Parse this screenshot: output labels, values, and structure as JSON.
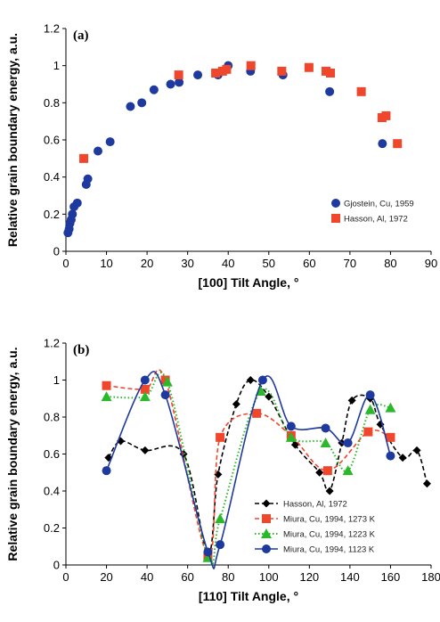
{
  "chart_data": [
    {
      "type": "scatter",
      "label": "(a)",
      "xlabel": "[100] Tilt Angle, °",
      "ylabel": "Relative grain boundary energy, a.u.",
      "xlim": [
        0,
        90
      ],
      "ylim": [
        0,
        1.2
      ],
      "xticks": [
        0,
        10,
        20,
        30,
        40,
        50,
        60,
        70,
        80,
        90
      ],
      "yticks": [
        0,
        0.2,
        0.4,
        0.6,
        0.8,
        1,
        1.2
      ],
      "grid": false,
      "legend": "bottom-right",
      "series": [
        {
          "name": "Gjostein, Cu, 1959",
          "color": "#1f3a9e",
          "marker": "circle",
          "x": [
            0.5,
            0.8,
            1.0,
            1.3,
            1.6,
            2.0,
            2.8,
            5.0,
            5.4,
            7.9,
            10.9,
            15.9,
            18.7,
            21.7,
            25.8,
            27.9,
            32.5,
            37.5,
            40.0,
            45.5,
            53.5,
            65.0,
            78.0
          ],
          "y": [
            0.1,
            0.12,
            0.15,
            0.17,
            0.2,
            0.24,
            0.26,
            0.36,
            0.39,
            0.54,
            0.59,
            0.78,
            0.8,
            0.87,
            0.9,
            0.91,
            0.95,
            0.95,
            1.0,
            0.97,
            0.95,
            0.86,
            0.58
          ]
        },
        {
          "name": "Hasson, Al, 1972",
          "color": "#f0462c",
          "marker": "square",
          "x": [
            4.4,
            27.8,
            36.9,
            38.6,
            39.6,
            45.6,
            53.2,
            59.9,
            64.1,
            65.2,
            72.8,
            77.9,
            78.9,
            81.7
          ],
          "y": [
            0.5,
            0.95,
            0.96,
            0.97,
            0.98,
            1.0,
            0.97,
            0.99,
            0.97,
            0.96,
            0.86,
            0.72,
            0.73,
            0.58
          ]
        }
      ]
    },
    {
      "type": "line",
      "label": "(b)",
      "xlabel": "[110] Tilt Angle, °",
      "ylabel": "Relative grain boundary energy, a.u.",
      "xlim": [
        0,
        180
      ],
      "ylim": [
        0,
        1.2
      ],
      "xticks": [
        0,
        20,
        40,
        60,
        80,
        100,
        120,
        140,
        160,
        180
      ],
      "yticks": [
        0,
        0.2,
        0.4,
        0.6,
        0.8,
        1,
        1.2
      ],
      "grid": false,
      "legend": "bottom-right",
      "series": [
        {
          "name": "Hasson, Al, 1972",
          "color": "#000000",
          "marker": "diamond",
          "line": "dashed",
          "x": [
            21,
            27,
            39,
            58,
            70,
            75,
            84,
            91,
            100,
            113,
            125,
            130,
            136,
            141,
            150,
            155,
            166,
            173,
            178
          ],
          "y": [
            0.58,
            0.67,
            0.62,
            0.6,
            0.06,
            0.49,
            0.87,
            1.0,
            0.91,
            0.65,
            0.5,
            0.4,
            0.66,
            0.89,
            0.9,
            0.76,
            0.58,
            0.62,
            0.44
          ]
        },
        {
          "name": "Miura, Cu, 1994, 1273 K",
          "color": "#f0462c",
          "marker": "square",
          "line": "dashed",
          "x": [
            20,
            39,
            49,
            70,
            76,
            94,
            111,
            129,
            149,
            160
          ],
          "y": [
            0.97,
            0.95,
            1.0,
            0.05,
            0.69,
            0.82,
            0.7,
            0.51,
            0.72,
            0.69
          ]
        },
        {
          "name": "Miura, Cu, 1994, 1223 K",
          "color": "#2bb82b",
          "marker": "triangle",
          "line": "dotted",
          "x": [
            20,
            39,
            50,
            70,
            76,
            96,
            111,
            128,
            139,
            150,
            160
          ],
          "y": [
            0.91,
            0.91,
            0.99,
            0.04,
            0.25,
            0.94,
            0.69,
            0.66,
            0.51,
            0.84,
            0.85
          ]
        },
        {
          "name": "Miura, Cu, 1994, 1123 K",
          "color": "#1f3a9e",
          "marker": "circle",
          "line": "solid",
          "x": [
            20,
            39,
            49,
            70,
            76,
            97,
            111,
            128,
            139,
            150,
            160
          ],
          "y": [
            0.51,
            1.0,
            0.92,
            0.07,
            0.11,
            1.0,
            0.75,
            0.74,
            0.66,
            0.92,
            0.59
          ]
        }
      ]
    }
  ]
}
